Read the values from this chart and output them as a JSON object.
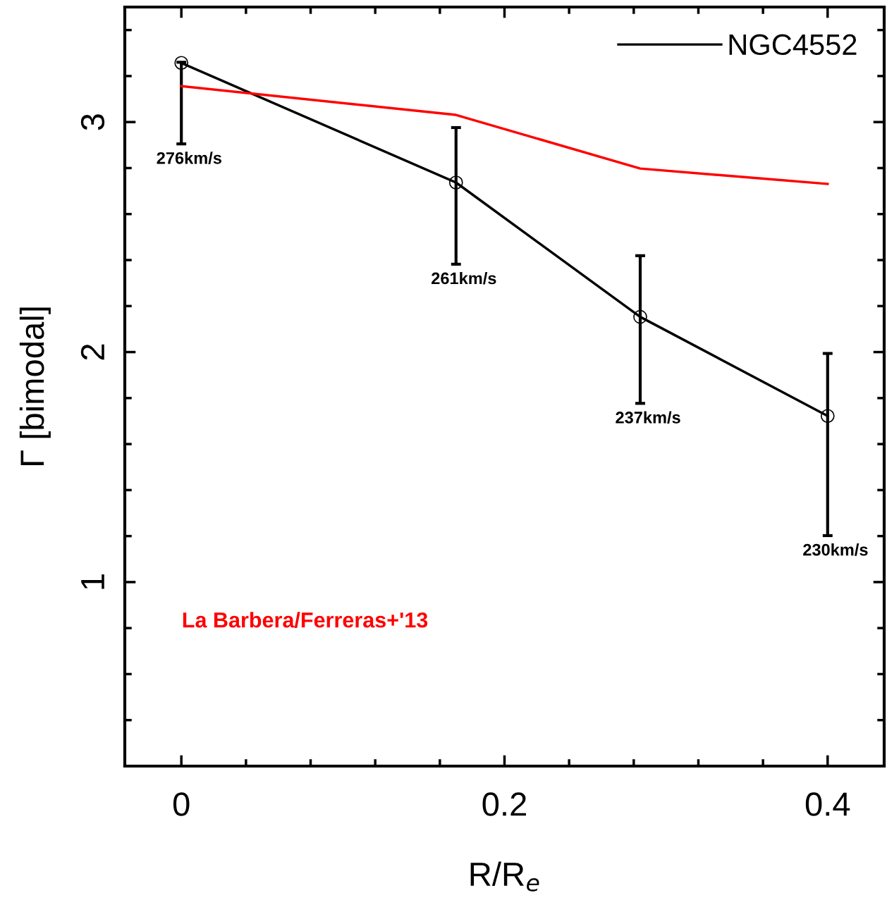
{
  "chart_data": {
    "type": "line",
    "xlabel": "R/R$_{e}$",
    "ylabel": "Γ [bimodal]",
    "xlim": [
      -0.035,
      0.435
    ],
    "ylim": [
      0.2,
      3.5
    ],
    "xticks": [
      0,
      0.2,
      0.4
    ],
    "yticks": [
      1,
      2,
      3
    ],
    "legend": "top right",
    "grid": false,
    "marker": "circle",
    "series": [
      {
        "name": "NGC4552",
        "color": "#000000",
        "x": [
          0,
          0.17,
          0.284,
          0.4
        ],
        "values": [
          3.257,
          2.737,
          2.153,
          1.722
        ],
        "errors": [
          [
            2.905,
            3.26
          ],
          [
            2.382,
            2.976
          ],
          [
            1.777,
            2.419
          ],
          [
            1.202,
            1.994
          ]
        ]
      },
      {
        "name": "La Barbera/Ferreras+'13",
        "color": "#ff0000",
        "marker": "none",
        "x": [
          0,
          0.17,
          0.284,
          0.4
        ],
        "values": [
          3.156,
          3.031,
          2.798,
          2.731
        ]
      }
    ],
    "annotations": [
      "276km/s",
      "261km/s",
      "237km/s",
      "230km/s"
    ]
  }
}
